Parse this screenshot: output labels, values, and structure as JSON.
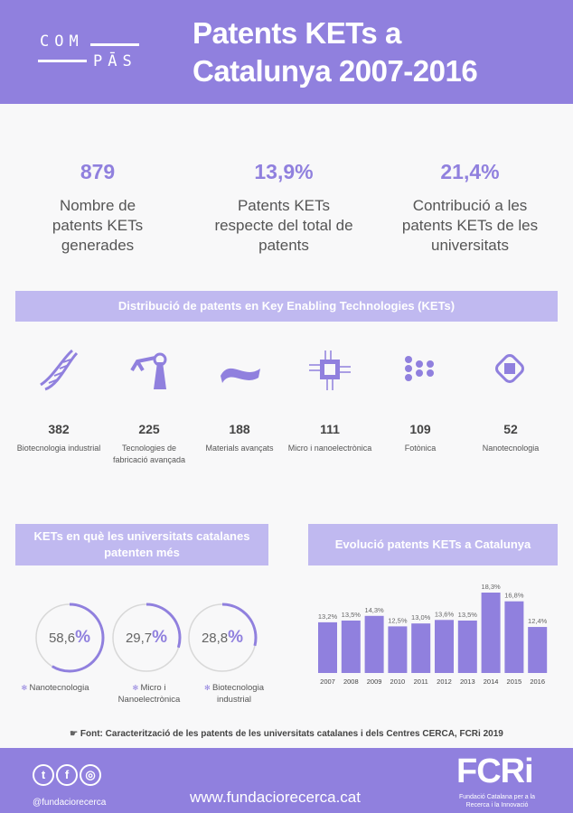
{
  "header": {
    "logo_top": "COM",
    "logo_bottom": "PĀS",
    "title_line1": "Patents KETs a",
    "title_line2": "Catalunya 2007-2016",
    "color": "#9080de"
  },
  "stats": [
    {
      "value": "879",
      "label": "Nombre de patents KETs generades"
    },
    {
      "value": "13,9%",
      "label": "Patents KETs respecte del total de patents"
    },
    {
      "value": "21,4%",
      "label": "Contribució a les patents KETs de les universitats"
    }
  ],
  "kets": {
    "title": "Distribució de patents en Key Enabling Technologies (KETs)",
    "items": [
      {
        "icon": "dna-icon",
        "value": "382",
        "label": "Biotecnologia industrial"
      },
      {
        "icon": "robot-arm-icon",
        "value": "225",
        "label": "Tecnologies de fabricació avançada"
      },
      {
        "icon": "material-wave-icon",
        "value": "188",
        "label": "Materials avançats"
      },
      {
        "icon": "microchip-icon",
        "value": "111",
        "label": "Micro i nanoelectrònica"
      },
      {
        "icon": "photonics-network-icon",
        "value": "109",
        "label": "Fotònica"
      },
      {
        "icon": "nano-chip-icon",
        "value": "52",
        "label": "Nanotecnologia"
      }
    ]
  },
  "universities": {
    "title": "KETs en què les universitats catalanes patenten més",
    "items": [
      {
        "value": "58,6",
        "unit": "%",
        "percent": 58.6,
        "label": "Nanotecnologia",
        "icon": "nano-icon"
      },
      {
        "value": "29,7",
        "unit": "%",
        "percent": 29.7,
        "label": "Micro i Nanoelectrònica",
        "icon": "chip-icon"
      },
      {
        "value": "28,8",
        "unit": "%",
        "percent": 28.8,
        "label": "Biotecnologia industrial",
        "icon": "dna-icon"
      }
    ]
  },
  "evolution": {
    "title": "Evolució patents KETs a Catalunya"
  },
  "chart_data": {
    "type": "bar",
    "title": "Evolució patents KETs a Catalunya",
    "categories": [
      "2007",
      "2008",
      "2009",
      "2010",
      "2011",
      "2012",
      "2013",
      "2014",
      "2015",
      "2016"
    ],
    "values": [
      13.2,
      13.5,
      14.3,
      12.5,
      13.0,
      13.6,
      13.5,
      18.3,
      16.8,
      12.4
    ],
    "labels": [
      "13,2%",
      "13,5%",
      "14,3%",
      "12,5%",
      "13,0%",
      "13,6%",
      "13,5%",
      "18,3%",
      "16,8%",
      "12,4%"
    ],
    "grid": false,
    "color": "#9080de"
  },
  "source": "Font: Caracterització de les patents de les universitats catalanes i dels Centres CERCA, FCRi 2019",
  "footer": {
    "handle": "@fundaciorecerca",
    "website": "www.fundaciorecerca.cat",
    "logo": "FCRi",
    "logo_sub": "Fundació Catalana per a la Recerca i la Innovació",
    "social": [
      "twitter-icon",
      "facebook-icon",
      "instagram-icon"
    ]
  }
}
